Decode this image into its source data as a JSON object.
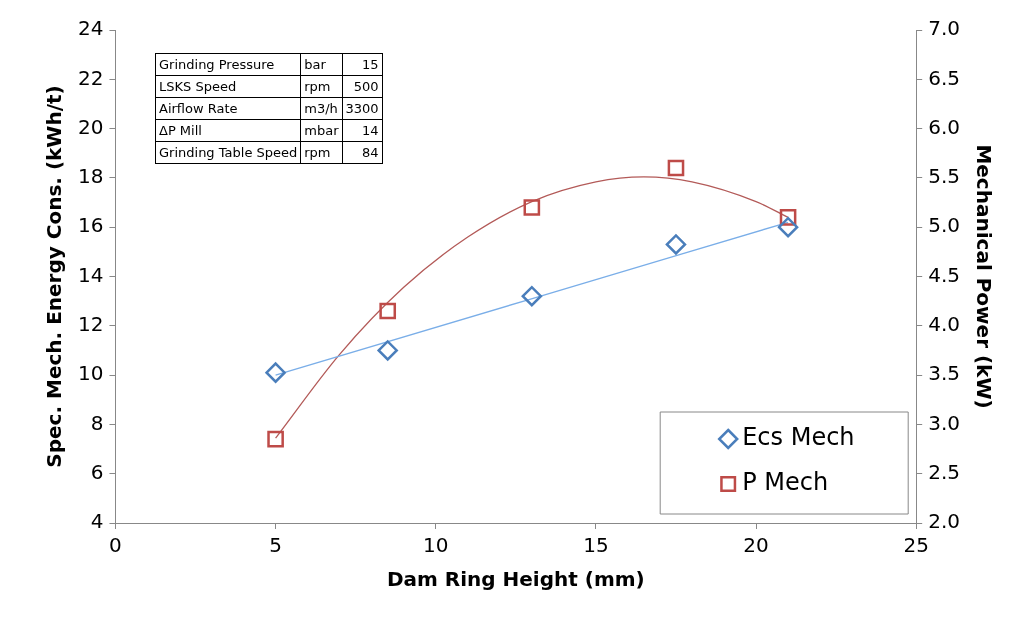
{
  "chart_data": {
    "type": "scatter",
    "xlabel": "Dam Ring Height (mm)",
    "ylabel": "Spec. Mech. Energy Cons. (kWh/t)",
    "y2label": "Mechanical Power (kW)",
    "x": [
      5,
      8.5,
      13,
      17.5,
      21
    ],
    "series": [
      {
        "name": "Ecs Mech",
        "marker": "diamond",
        "color": "#4a7ebb",
        "values": [
          10.1,
          11.0,
          13.2,
          15.3,
          16.0
        ]
      },
      {
        "name": "P Mech",
        "marker": "square",
        "color": "#be4b48",
        "axis": "y2",
        "values": [
          2.85,
          4.15,
          5.2,
          5.6,
          5.1
        ]
      },
      {
        "type": "line",
        "marker": "none",
        "color": "#7aaee8",
        "x": [
          5,
          21
        ],
        "values": [
          10.0,
          16.2
        ]
      },
      {
        "type": "line",
        "marker": "none",
        "color": "#b35a58",
        "axis": "y2",
        "x": [
          5,
          7,
          9,
          11,
          13,
          15,
          16.5,
          18,
          20,
          21
        ],
        "values": [
          2.86,
          3.71,
          4.39,
          4.9,
          5.26,
          5.46,
          5.51,
          5.46,
          5.26,
          5.1
        ]
      }
    ],
    "xlim": [
      0,
      25
    ],
    "xticks": [
      0,
      5,
      10,
      15,
      20,
      25
    ],
    "ylim": [
      4,
      24
    ],
    "yticks": [
      4,
      6,
      8,
      10,
      12,
      14,
      16,
      18,
      20,
      22,
      24
    ],
    "y2lim": [
      2,
      7
    ],
    "y2ticks": [
      {
        "value": 2,
        "label": "2.0"
      },
      {
        "value": 2.5,
        "label": "2.5"
      },
      {
        "value": 3,
        "label": "3.0"
      },
      {
        "value": 3.5,
        "label": "3.5"
      },
      {
        "value": 4,
        "label": "4.0"
      },
      {
        "value": 4.5,
        "label": "4.5"
      },
      {
        "value": 5,
        "label": "5.0"
      },
      {
        "value": 5.5,
        "label": "5.5"
      },
      {
        "value": 6,
        "label": "6.0"
      },
      {
        "value": 6.5,
        "label": "6.5"
      },
      {
        "value": 7,
        "label": "7.0"
      }
    ],
    "grid": false,
    "legend": "bottom right",
    "annotations": [
      "Grinding Pressure\tbar\t15",
      "LSKS Speed\trpm\t500",
      "Airflow Rate\tm3/h\t3300",
      "ΔP Mill\tmbar\t14",
      "Grinding Table Speed\trpm\t84"
    ]
  }
}
